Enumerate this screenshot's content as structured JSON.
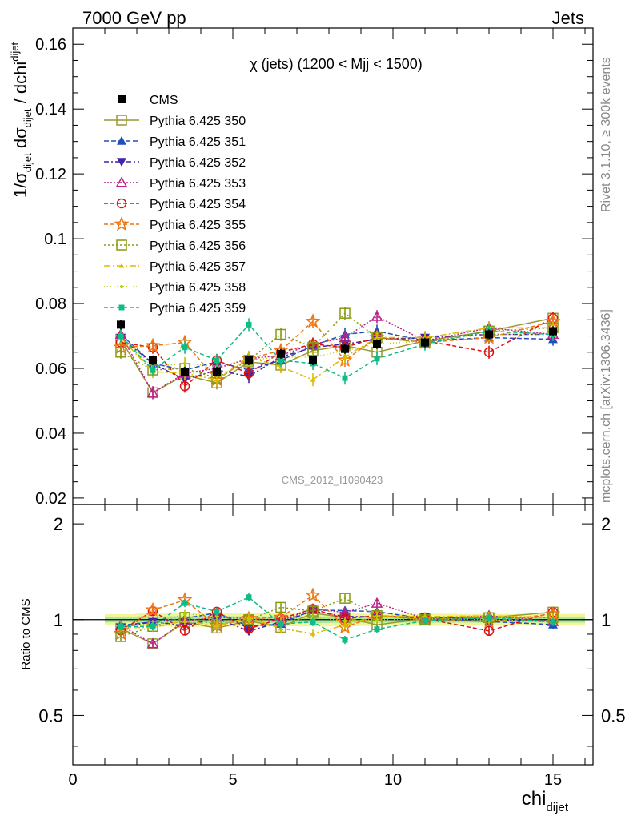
{
  "header": {
    "left": "7000 GeV pp",
    "right": "Jets"
  },
  "side_text": {
    "rivet": "Rivet 3.1.10, ≥ 300k events",
    "mcplots": "mcplots.cern.ch [arXiv:1306.3436]"
  },
  "chart_data": {
    "type": "scatter",
    "title": "χ (jets) (1200 < Mjj < 1500)",
    "analysis_label": "CMS_2012_I1090423",
    "ylabel_main": {
      "prefix": "1/σ",
      "sub1": "dijet",
      "mid": " dσ",
      "sub2": "dijet",
      "suffix": " / dchi",
      "sub3": "dijet"
    },
    "xlabel": {
      "base": "chi",
      "sub": "dijet"
    },
    "ylabel_ratio": "Ratio to CMS",
    "xlim": [
      0,
      16.25
    ],
    "ylim_main": [
      0.018,
      0.165
    ],
    "ylim_ratio": [
      0.35,
      2.3
    ],
    "ratio_log_scale": true,
    "main_ticks": [
      "0.02",
      "0.04",
      "0.06",
      "0.08",
      "0.1",
      "0.12",
      "0.14",
      "0.16"
    ],
    "main_tick_values": [
      0.02,
      0.04,
      0.06,
      0.08,
      0.1,
      0.12,
      0.14,
      0.16
    ],
    "ratio_ticks": [
      "0.5",
      "1",
      "2"
    ],
    "ratio_tick_values": [
      0.5,
      1,
      2
    ],
    "x_ticks": [
      "0",
      "5",
      "10",
      "15"
    ],
    "x_tick_values": [
      0,
      5,
      10,
      15
    ],
    "x": [
      1.5,
      2.5,
      3.5,
      4.5,
      5.5,
      6.5,
      7.5,
      8.5,
      9.5,
      11,
      13,
      15
    ],
    "data_series": {
      "name": "CMS",
      "values": [
        0.0735,
        0.0625,
        0.059,
        0.059,
        0.0625,
        0.0645,
        0.0625,
        0.066,
        0.0675,
        0.068,
        0.0705,
        0.0715
      ],
      "errors": [
        0.0015,
        0.0015,
        0.0015,
        0.0015,
        0.0015,
        0.0015,
        0.0015,
        0.0015,
        0.0015,
        0.0015,
        0.0015,
        0.0015
      ]
    },
    "series": [
      {
        "name": "Pythia 6.425 350",
        "color": "#999933",
        "dash": "",
        "marker": "square-open",
        "values": [
          0.069,
          0.0525,
          0.058,
          0.0555,
          0.062,
          0.061,
          0.0655,
          0.067,
          0.065,
          0.0685,
          0.0715,
          0.0755
        ]
      },
      {
        "name": "Pythia 6.425 351",
        "color": "#1f4fbf",
        "dash": "6,3",
        "marker": "triangle-up",
        "values": [
          0.0705,
          0.0615,
          0.0595,
          0.062,
          0.0595,
          0.0625,
          0.067,
          0.0705,
          0.0715,
          0.0685,
          0.0695,
          0.069
        ]
      },
      {
        "name": "Pythia 6.425 352",
        "color": "#4422aa",
        "dash": "6,3,2,3",
        "marker": "triangle-down",
        "values": [
          0.0695,
          0.0615,
          0.0565,
          0.0595,
          0.0575,
          0.0635,
          0.0665,
          0.0675,
          0.069,
          0.0695,
          0.0705,
          0.0705
        ]
      },
      {
        "name": "Pythia 6.425 353",
        "color": "#bb2288",
        "dash": "2,2",
        "marker": "triangle-open",
        "values": [
          0.0705,
          0.0525,
          0.0585,
          0.06,
          0.063,
          0.064,
          0.0675,
          0.0695,
          0.076,
          0.0685,
          0.0725,
          0.0705
        ]
      },
      {
        "name": "Pythia 6.425 354",
        "color": "#dd1111",
        "dash": "5,3",
        "marker": "circle-open",
        "values": [
          0.068,
          0.0665,
          0.0545,
          0.0625,
          0.0585,
          0.065,
          0.0675,
          0.0665,
          0.0695,
          0.0685,
          0.065,
          0.0755
        ]
      },
      {
        "name": "Pythia 6.425 355",
        "color": "#ee7711",
        "dash": "5,3",
        "marker": "star-open",
        "values": [
          0.0665,
          0.067,
          0.068,
          0.0565,
          0.063,
          0.0655,
          0.0745,
          0.0625,
          0.0695,
          0.068,
          0.0695,
          0.0745
        ]
      },
      {
        "name": "Pythia 6.425 356",
        "color": "#889911",
        "dash": "2,3",
        "marker": "square-open",
        "values": [
          0.065,
          0.0595,
          0.06,
          0.057,
          0.0625,
          0.0705,
          0.0665,
          0.077,
          0.0695,
          0.068,
          0.0715,
          0.0725
        ]
      },
      {
        "name": "Pythia 6.425 357",
        "color": "#ddbb00",
        "dash": "8,3,2,3",
        "marker": "tri-small",
        "values": [
          0.0695,
          0.059,
          0.0585,
          0.0565,
          0.0635,
          0.0605,
          0.0565,
          0.0635,
          0.0695,
          0.0695,
          0.0725,
          0.0725
        ]
      },
      {
        "name": "Pythia 6.425 358",
        "color": "#bbcc00",
        "dash": "1,3",
        "marker": "dot",
        "values": [
          0.0705,
          0.0605,
          0.0615,
          0.0605,
          0.0625,
          0.0635,
          0.0635,
          0.0655,
          0.0675,
          0.0685,
          0.0705,
          0.0705
        ]
      },
      {
        "name": "Pythia 6.425 359",
        "color": "#11bb88",
        "dash": "5,3",
        "marker": "square-small",
        "values": [
          0.07,
          0.0595,
          0.0665,
          0.0625,
          0.0735,
          0.0625,
          0.0615,
          0.057,
          0.063,
          0.0675,
          0.0715,
          0.0705
        ]
      }
    ]
  }
}
